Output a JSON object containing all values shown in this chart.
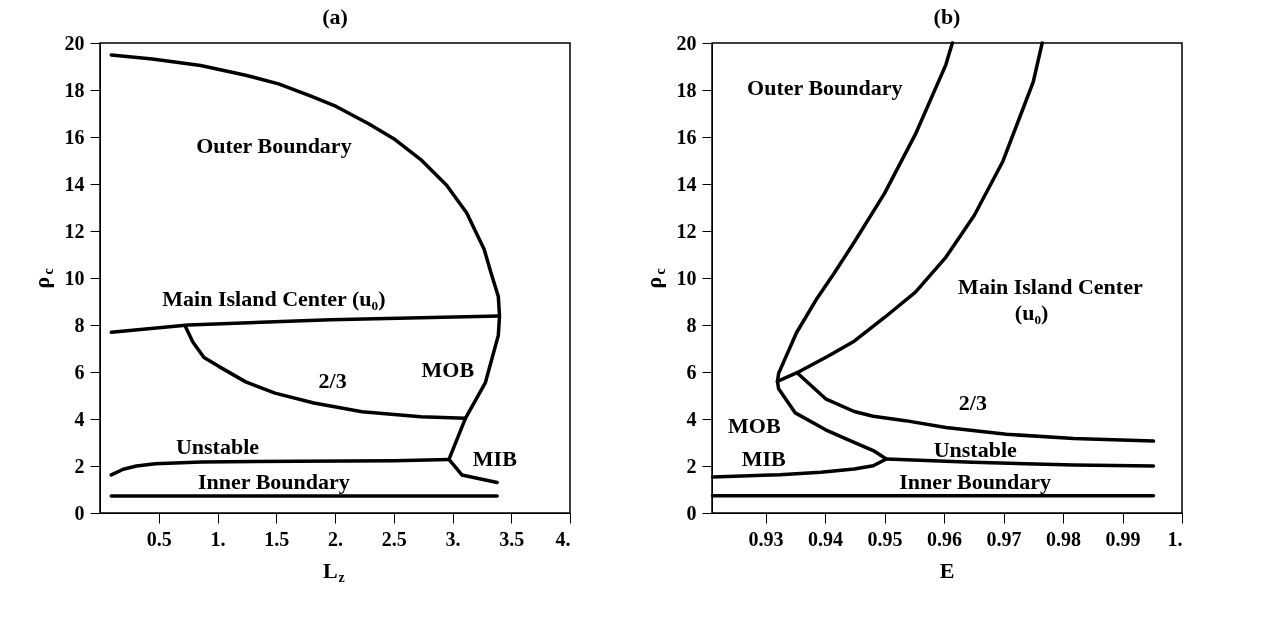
{
  "chart_data": [
    {
      "type": "line",
      "title": "(a)",
      "xlabel": "L$_{z}$",
      "ylabel": "ρ$_{c}$",
      "xlim": [
        0,
        4
      ],
      "ylim": [
        0,
        20
      ],
      "xticks": [
        0.5,
        {
          "value": 1,
          "label": "1."
        },
        1.5,
        {
          "value": 2,
          "label": "2."
        },
        2.5,
        {
          "value": 3,
          "label": "3."
        },
        3.5,
        {
          "value": 4,
          "label": "4."
        }
      ],
      "yticks": [
        0,
        2,
        4,
        6,
        8,
        10,
        12,
        14,
        16,
        18,
        20
      ],
      "grid": false,
      "series": [
        {
          "color": "#000000",
          "x": [
            0.096,
            0.445,
            0.857,
            1.24,
            1.52,
            1.79,
            2.01,
            2.29,
            2.5,
            2.73,
            2.95,
            3.12,
            3.27,
            3.33,
            3.39,
            3.4,
            3.39,
            3.28,
            3.11,
            2.97,
            3.08,
            3.38
          ],
          "values": [
            19.49,
            19.32,
            19.04,
            18.63,
            18.26,
            17.75,
            17.3,
            16.55,
            15.93,
            15.04,
            13.95,
            12.78,
            11.21,
            10.18,
            9.21,
            8.38,
            7.56,
            5.55,
            4.03,
            2.28,
            1.62,
            1.3
          ]
        },
        {
          "color": "#000000",
          "x": [
            0.096,
            0.75,
            1.96,
            3.4
          ],
          "values": [
            7.69,
            8.0,
            8.22,
            8.38
          ]
        },
        {
          "color": "#000000",
          "x": [
            0.73,
            0.79,
            0.885,
            1.01,
            1.24,
            1.49,
            1.82,
            2.23,
            2.73,
            3.11
          ],
          "values": [
            7.9,
            7.28,
            6.62,
            6.24,
            5.58,
            5.1,
            4.68,
            4.31,
            4.1,
            4.03
          ]
        },
        {
          "color": "#000000",
          "x": [
            0.096,
            0.198,
            0.31,
            0.47,
            0.86,
            1.68,
            2.5,
            2.97
          ],
          "values": [
            1.62,
            1.86,
            2.0,
            2.1,
            2.17,
            2.2,
            2.22,
            2.28
          ]
        },
        {
          "color": "#000000",
          "x": [
            0.096,
            3.38
          ],
          "values": [
            0.72,
            0.72
          ]
        }
      ],
      "annotations": [
        "Outer Boundary",
        "Main Island Center (u₀)",
        "2/3",
        "MOB",
        "Unstable",
        "MIB",
        "Inner Boundary"
      ]
    },
    {
      "type": "line",
      "title": "(b)",
      "xlabel": "E",
      "ylabel": "ρ$_{c}$",
      "xlim": [
        0.921,
        1.0
      ],
      "ylim": [
        0,
        20
      ],
      "xticks": [
        0.93,
        0.94,
        0.95,
        0.96,
        0.97,
        0.98,
        0.99,
        {
          "value": 1,
          "label": "1."
        }
      ],
      "yticks": [
        0,
        2,
        4,
        6,
        8,
        10,
        12,
        14,
        16,
        18,
        20
      ],
      "grid": false,
      "series": [
        {
          "color": "#000000",
          "x": [
            0.9614,
            0.9603,
            0.9552,
            0.95,
            0.9449,
            0.9415,
            0.9387,
            0.9352,
            0.9322,
            0.932,
            0.9322,
            0.935,
            0.9401,
            0.9444,
            0.9483,
            0.9503,
            0.9481,
            0.9449,
            0.9393,
            0.9324,
            0.9211
          ],
          "values": [
            20,
            19.07,
            16.12,
            13.6,
            11.52,
            10.19,
            9.15,
            7.67,
            5.94,
            5.6,
            5.29,
            4.26,
            3.54,
            3.06,
            2.63,
            2.3,
            2.01,
            1.87,
            1.73,
            1.63,
            1.53
          ]
        },
        {
          "color": "#000000",
          "x": [
            0.932,
            0.9353,
            0.9404,
            0.9449,
            0.95,
            0.9552,
            0.9603,
            0.9651,
            0.9699,
            0.975,
            0.9765
          ],
          "values": [
            5.6,
            5.97,
            6.66,
            7.31,
            8.32,
            9.4,
            10.88,
            12.67,
            14.97,
            18.35,
            20
          ]
        },
        {
          "color": "#000000",
          "x": [
            0.9353,
            0.9401,
            0.9449,
            0.9481,
            0.9535,
            0.9603,
            0.9705,
            0.9818,
            0.9952
          ],
          "values": [
            5.97,
            4.86,
            4.32,
            4.12,
            3.93,
            3.64,
            3.35,
            3.17,
            3.06
          ]
        },
        {
          "color": "#000000",
          "x": [
            0.9503,
            0.9648,
            0.9818,
            0.9952
          ],
          "values": [
            2.3,
            2.16,
            2.04,
            2.0
          ]
        },
        {
          "color": "#000000",
          "x": [
            0.9211,
            0.9952
          ],
          "values": [
            0.73,
            0.73
          ]
        }
      ],
      "annotations": [
        "Outer Boundary",
        "Main Island Center",
        "(u₀)",
        "2/3",
        "MOB",
        "MIB",
        "Unstable",
        "Inner Boundary"
      ]
    }
  ]
}
